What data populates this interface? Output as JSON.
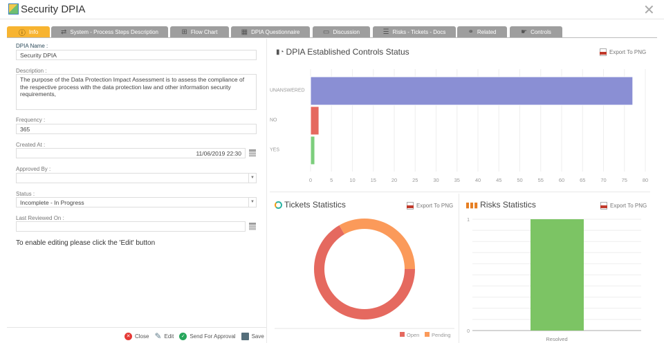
{
  "window": {
    "title": "Security DPIA",
    "close_icon": "close-x-icon"
  },
  "tabs": [
    {
      "label": "Info",
      "icon": "info-icon",
      "active": true
    },
    {
      "label": "System - Process Steps Description",
      "icon": "process-icon"
    },
    {
      "label": "Flow Chart",
      "icon": "flowchart-icon"
    },
    {
      "label": "DPIA Questionnaire",
      "icon": "questionnaire-icon"
    },
    {
      "label": "Discussion",
      "icon": "chat-icon"
    },
    {
      "label": "Risks - Tickets - Docs",
      "icon": "list-icon"
    },
    {
      "label": "Related",
      "icon": "link-icon"
    },
    {
      "label": "Controls",
      "icon": "hand-pointer-icon"
    }
  ],
  "form": {
    "name_label": "DPIA Name :",
    "name_value": "Security DPIA",
    "description_label": "Description :",
    "description_value": "The purpose of the Data Protection Impact Assessment is to assess the compliance of the respective process with the data protection law and other information security requirements,",
    "frequency_label": "Frequency :",
    "frequency_value": "365",
    "created_label": "Created At :",
    "created_value": "11/06/2019 22:30",
    "approved_label": "Approved By :",
    "approved_value": "",
    "status_label": "Status :",
    "status_value": "Incomplete - In Progress",
    "reviewed_label": "Last Reviewed On :",
    "reviewed_value": "",
    "edit_notice": "To enable editing please click the 'Edit' button"
  },
  "footer": {
    "close": "Close",
    "edit": "Edit",
    "send": "Send For Approval",
    "save": "Save"
  },
  "export_label": "Export To PNG",
  "chart_data": [
    {
      "type": "bar",
      "orientation": "horizontal",
      "title": "DPIA Established Controls Status",
      "categories": [
        "UNANSWERED",
        "NO",
        "YES"
      ],
      "values": [
        77,
        2,
        1
      ],
      "colors": [
        "#8a8fd4",
        "#e5695f",
        "#7dce7d"
      ],
      "xlim": [
        0,
        80
      ],
      "xticks": [
        "0",
        "5",
        "10",
        "15",
        "20",
        "25",
        "30",
        "35",
        "40",
        "45",
        "50",
        "55",
        "60",
        "65",
        "70",
        "75",
        "80"
      ],
      "grid": true
    },
    {
      "type": "pie",
      "variant": "donut",
      "title": "Tickets Statistics",
      "categories": [
        "Open",
        "Pending"
      ],
      "values": [
        2,
        1
      ],
      "colors": [
        "#e5695f",
        "#fb9a5a"
      ],
      "legend": "bottom-right"
    },
    {
      "type": "bar",
      "title": "Risks Statistics",
      "categories": [
        "Resolved"
      ],
      "values": [
        1
      ],
      "colors": [
        "#7cc464"
      ],
      "ylim": [
        0,
        1
      ],
      "yticks": [
        "0",
        "1"
      ],
      "grid": true
    }
  ]
}
